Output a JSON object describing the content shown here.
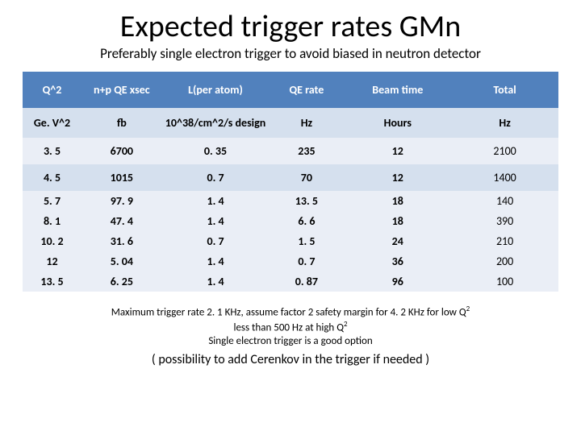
{
  "title": "Expected trigger rates GMn",
  "subtitle": "Preferably single electron trigger to avoid biased in neutron detector",
  "table": {
    "columns": [
      "Q^2",
      "n+p QE xsec",
      "L(per atom)",
      "QE rate",
      "Beam time",
      "Total"
    ],
    "units": [
      "Ge. V^2",
      "fb",
      "10^38/cm^2/s design",
      "Hz",
      "Hours",
      "Hz"
    ],
    "col_widths_pct": [
      11,
      15,
      20,
      14,
      20,
      20
    ],
    "header_bg": "#5181bd",
    "header_fg": "#ffffff",
    "stripe1_bg": "#eaeef6",
    "stripe2_bg": "#d5e0ee",
    "font_size": 14,
    "rows": [
      [
        "3. 5",
        "6700",
        "0. 35",
        "235",
        "12",
        "2100"
      ],
      [
        "4. 5",
        "1015",
        "0. 7",
        "70",
        "12",
        "1400"
      ],
      [
        "5. 7",
        "97. 9",
        "1. 4",
        "13. 5",
        "18",
        "140"
      ],
      [
        "8. 1",
        "47. 4",
        "1. 4",
        "6. 6",
        "18",
        "390"
      ],
      [
        "10. 2",
        "31. 6",
        "0. 7",
        "1. 5",
        "24",
        "210"
      ],
      [
        "12",
        "5. 04",
        "1. 4",
        "0. 7",
        "36",
        "200"
      ],
      [
        "13. 5",
        "6. 25",
        "1. 4",
        "0. 87",
        "96",
        "100"
      ]
    ]
  },
  "caption": {
    "line1a": "Maximum trigger rate 2. 1 KHz, assume factor 2 safety margin for 4. 2 KHz for low Q",
    "line1b": "less than 500 Hz at high Q",
    "line2": "Single electron trigger is a good option",
    "line3": "( possibility to add Cerenkov in the trigger if needed )"
  },
  "colors": {
    "background": "#ffffff",
    "text": "#000000"
  }
}
